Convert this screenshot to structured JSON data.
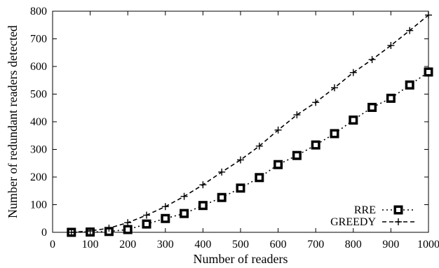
{
  "chart_data": {
    "type": "line",
    "title": "",
    "xlabel": "Number of readers",
    "ylabel": "Number of redundant readers detected",
    "xlim": [
      0,
      1000
    ],
    "ylim": [
      0,
      800
    ],
    "xticks": [
      0,
      100,
      200,
      300,
      400,
      500,
      600,
      700,
      800,
      900,
      1000
    ],
    "yticks": [
      0,
      100,
      200,
      300,
      400,
      500,
      600,
      700,
      800
    ],
    "grid": false,
    "legend_position": "bottom-right",
    "x": [
      50,
      100,
      150,
      200,
      250,
      300,
      350,
      400,
      450,
      500,
      550,
      600,
      650,
      700,
      750,
      800,
      850,
      900,
      950,
      1000
    ],
    "series": [
      {
        "name": "RRE",
        "style": "dotted",
        "marker": "square",
        "color": "#000000",
        "values": [
          0,
          1,
          3,
          10,
          30,
          50,
          68,
          97,
          126,
          160,
          198,
          245,
          278,
          316,
          357,
          406,
          452,
          485,
          533,
          580
        ]
      },
      {
        "name": "GREEDY",
        "style": "dashed",
        "marker": "plus",
        "color": "#000000",
        "values": [
          0,
          5,
          15,
          35,
          62,
          93,
          130,
          172,
          218,
          262,
          312,
          370,
          425,
          470,
          523,
          578,
          625,
          676,
          730,
          786
        ]
      }
    ]
  }
}
